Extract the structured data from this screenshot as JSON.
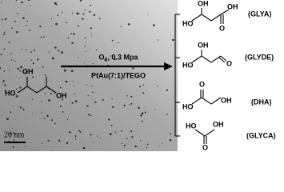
{
  "image": {
    "scale_bar": "20 nm"
  },
  "reactant": {
    "labels": [
      "HO",
      "OH",
      "OH"
    ]
  },
  "conditions": {
    "top": "O₂, 0.3 Mpa",
    "bottom": "PtAu(7:1)/TEGO"
  },
  "products": [
    {
      "name": "(GLYA)",
      "labels": [
        "OH",
        "HO",
        "OH",
        "O"
      ]
    },
    {
      "name": "(GLYDE)",
      "labels": [
        "OH",
        "HO",
        "O"
      ]
    },
    {
      "name": "(DHA)",
      "labels": [
        "O",
        "HO",
        "OH"
      ]
    },
    {
      "name": "(GLYCA)",
      "labels": [
        "HO",
        "OH",
        "O"
      ]
    }
  ]
}
